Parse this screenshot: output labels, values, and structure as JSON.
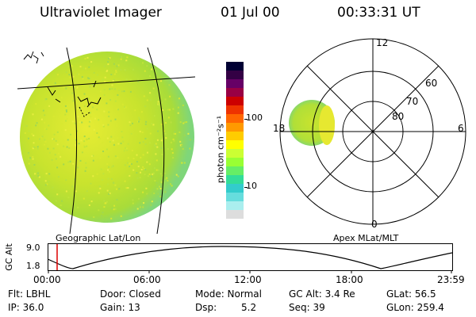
{
  "header": {
    "title": "Ultraviolet Imager",
    "date": "01 Jul 00",
    "time": "00:33:31 UT"
  },
  "earth_panel": {
    "caption": "Geographic Lat/Lon"
  },
  "colorbar": {
    "unit_label": "photon cm⁻²s⁻¹",
    "tick_100": "100",
    "tick_10": "10",
    "colors": [
      "#000033",
      "#330044",
      "#660066",
      "#990044",
      "#cc0000",
      "#ee3300",
      "#ff6600",
      "#ff9900",
      "#ffcc00",
      "#ffff00",
      "#ccff33",
      "#99ff33",
      "#66ee66",
      "#33dd99",
      "#33cccc",
      "#66dddd",
      "#aaeeee",
      "#dddddd"
    ]
  },
  "polar_panel": {
    "caption": "Apex MLat/MLT",
    "mlt_12": "12",
    "mlt_18": "18",
    "mlt_6": "6",
    "mlt_0": "0",
    "lat_60": "60",
    "lat_70": "70",
    "lat_80": "80"
  },
  "altitude_plot": {
    "ylabel": "GC Alt",
    "ytick_top": "9.0",
    "ytick_bottom": "1.8",
    "xticks": [
      "00:00",
      "06:00",
      "12:00",
      "18:00",
      "23:59"
    ],
    "marker_time": "00:33"
  },
  "footer": {
    "flt": "Flt: LBHL",
    "ip": "IP: 36.0",
    "door": "Door: Closed",
    "gain": "Gain: 13",
    "mode": "Mode: Normal",
    "dsp_label": "Dsp:",
    "dsp_value": "5.2",
    "gc_alt": "GC Alt: 3.4 Re",
    "seq": "Seq: 39",
    "glat": "GLat: 56.5",
    "glon": "GLon: 259.4"
  }
}
